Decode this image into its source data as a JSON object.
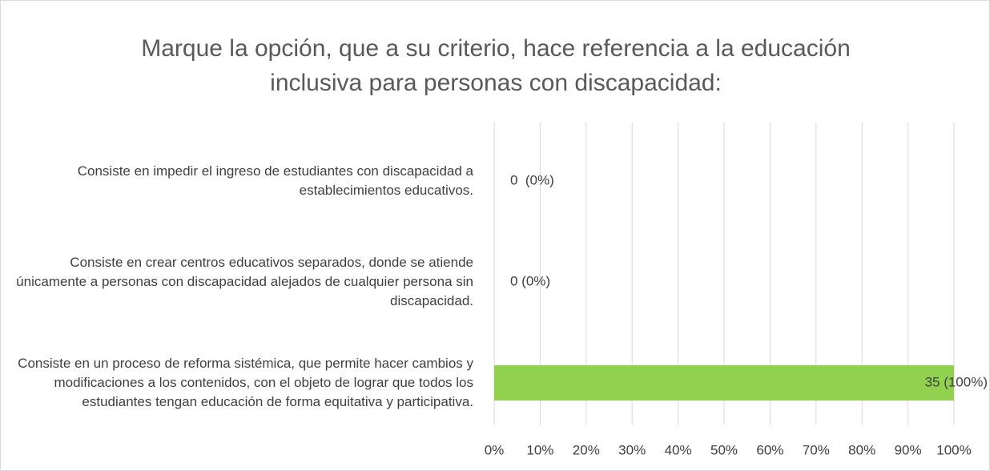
{
  "chart_data": {
    "type": "hbar",
    "title": "Marque la opción, que a su criterio, hace referencia a la educación inclusiva para personas con discapacidad:",
    "categories": [
      "Consiste en impedir el ingreso de estudiantes con discapacidad a establecimientos educativos.",
      "Consiste en crear centros educativos separados, donde se atiende únicamente a personas con discapacidad alejados de cualquier persona sin discapacidad.",
      "Consiste en un proceso de reforma sistémica, que permite hacer cambios y modificaciones a los contenidos, con el objeto de lograr que todos los estudiantes tengan educación de forma equitativa y participativa."
    ],
    "values": [
      0,
      0,
      100
    ],
    "value_labels": [
      "0  (0%)",
      "0 (0%)",
      "35 (100%)"
    ],
    "color": "#92d050",
    "xlim": [
      0,
      100
    ],
    "xticks": [
      {
        "value": 0,
        "label": "0%"
      },
      {
        "value": 10,
        "label": "10%"
      },
      {
        "value": 20,
        "label": "20%"
      },
      {
        "value": 30,
        "label": "30%"
      },
      {
        "value": 40,
        "label": "40%"
      },
      {
        "value": 50,
        "label": "50%"
      },
      {
        "value": 60,
        "label": "60%"
      },
      {
        "value": 70,
        "label": "70%"
      },
      {
        "value": 80,
        "label": "80%"
      },
      {
        "value": 90,
        "label": "90%"
      },
      {
        "value": 100,
        "label": "100%"
      }
    ],
    "grid": true
  }
}
